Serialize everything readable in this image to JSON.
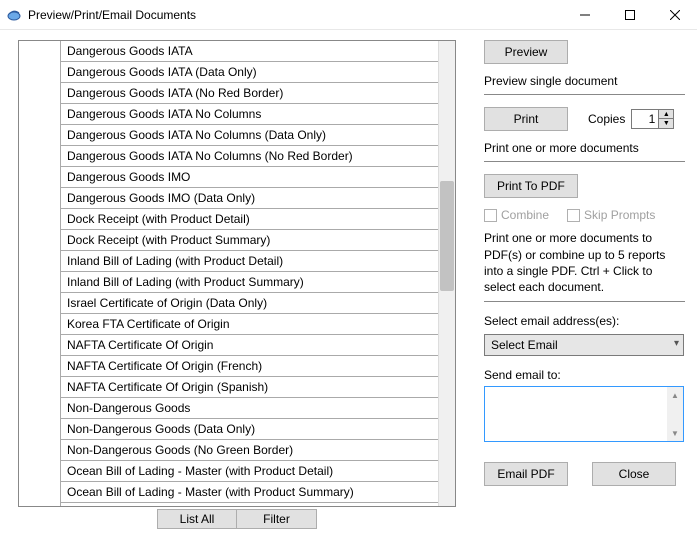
{
  "window": {
    "title": "Preview/Print/Email Documents"
  },
  "list": {
    "items": [
      "Dangerous Goods IATA",
      "Dangerous Goods IATA (Data Only)",
      "Dangerous Goods IATA (No Red Border)",
      "Dangerous Goods IATA No Columns",
      "Dangerous Goods IATA No Columns (Data Only)",
      "Dangerous Goods IATA No Columns (No Red Border)",
      "Dangerous Goods IMO",
      "Dangerous Goods IMO (Data Only)",
      "Dock Receipt (with Product Detail)",
      "Dock Receipt (with Product Summary)",
      "Inland Bill of Lading (with Product Detail)",
      "Inland Bill of Lading (with Product Summary)",
      "Israel Certificate of Origin (Data Only)",
      "Korea FTA Certificate of Origin",
      "NAFTA Certificate Of Origin",
      "NAFTA Certificate Of Origin (French)",
      "NAFTA Certificate Of Origin (Spanish)",
      "Non-Dangerous Goods",
      "Non-Dangerous Goods (Data Only)",
      "Non-Dangerous Goods (No Green Border)",
      "Ocean Bill of Lading - Master (with Product Detail)",
      "Ocean Bill of Lading - Master (with Product Summary)"
    ]
  },
  "left_buttons": {
    "list_all": "List All",
    "filter": "Filter"
  },
  "preview": {
    "button": "Preview",
    "desc": "Preview single document"
  },
  "print": {
    "button": "Print",
    "copies_label": "Copies",
    "copies_value": "1",
    "desc": "Print one or more documents"
  },
  "pdf": {
    "button": "Print To PDF",
    "combine": "Combine",
    "skip": "Skip Prompts",
    "help": "Print one or more documents to PDF(s) or combine up to 5 reports into a single PDF.  Ctrl + Click to select each document."
  },
  "email": {
    "select_label": "Select email address(es):",
    "select_value": "Select Email",
    "send_label": "Send email to:",
    "email_pdf": "Email PDF",
    "close": "Close"
  }
}
